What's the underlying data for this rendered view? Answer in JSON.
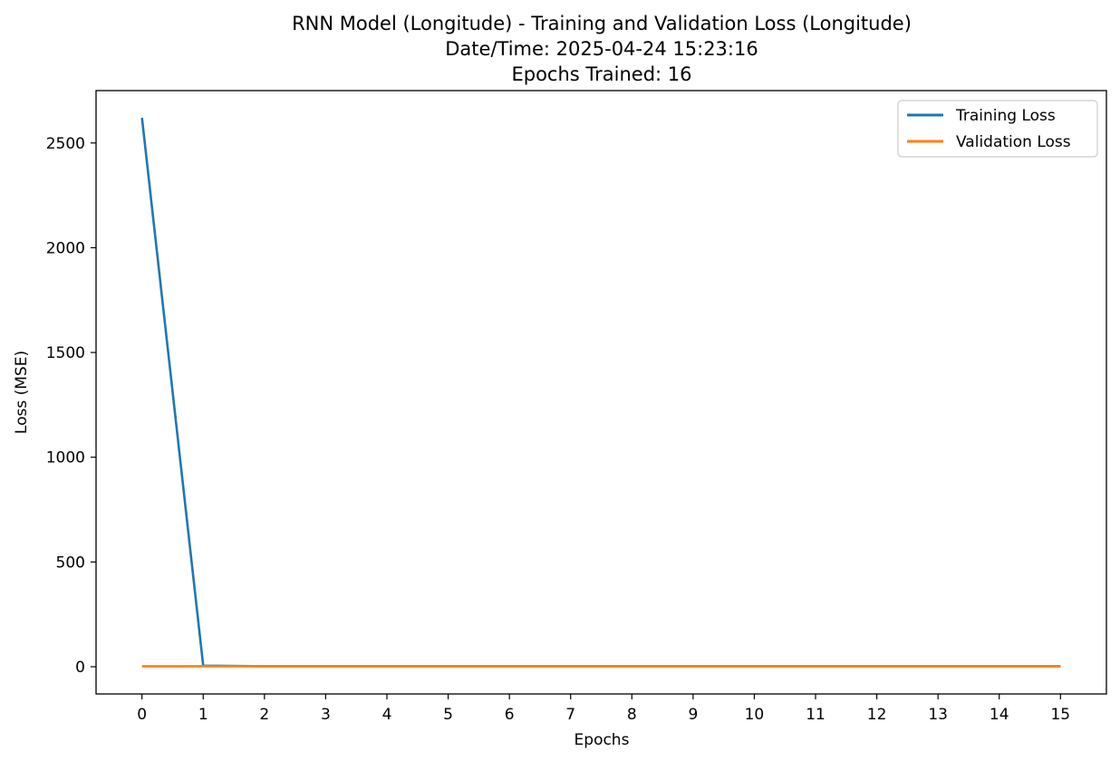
{
  "chart_data": {
    "type": "line",
    "title_lines": [
      "RNN Model (Longitude) - Training and Validation Loss (Longitude)",
      "Date/Time: 2025-04-24 15:23:16",
      "Epochs Trained: 16"
    ],
    "xlabel": "Epochs",
    "ylabel": "Loss (MSE)",
    "x": [
      0,
      1,
      2,
      3,
      4,
      5,
      6,
      7,
      8,
      9,
      10,
      11,
      12,
      13,
      14,
      15
    ],
    "x_ticks": [
      0,
      1,
      2,
      3,
      4,
      5,
      6,
      7,
      8,
      9,
      10,
      11,
      12,
      13,
      14,
      15
    ],
    "y_ticks": [
      0,
      500,
      1000,
      1500,
      2000,
      2500
    ],
    "xlim": [
      -0.75,
      15.75
    ],
    "ylim": [
      -130,
      2750
    ],
    "grid": false,
    "legend_position": "top-right",
    "series": [
      {
        "name": "Training Loss",
        "color": "#1f77b4",
        "values": [
          2620,
          5,
          2,
          2,
          2,
          2,
          2,
          2,
          2,
          2,
          2,
          2,
          2,
          2,
          2,
          2
        ]
      },
      {
        "name": "Validation Loss",
        "color": "#ff7f0e",
        "values": [
          2,
          2,
          2,
          2,
          2,
          2,
          2,
          2,
          2,
          2,
          2,
          2,
          2,
          2,
          2,
          2
        ]
      }
    ]
  }
}
